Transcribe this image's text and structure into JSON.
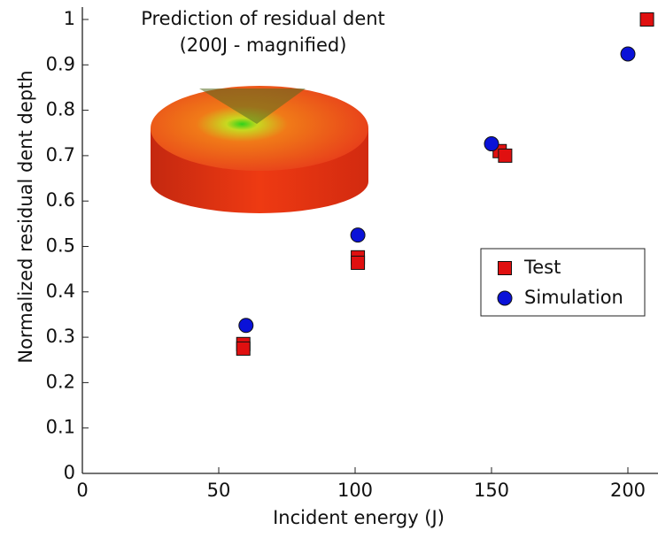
{
  "chart_data": {
    "type": "scatter",
    "annotations": [
      "Prediction of residual dent",
      "(200J - magnified)"
    ],
    "x_label": "Incident energy (J)",
    "y_label": "Normalized residual dent depth",
    "xlim": [
      0,
      210
    ],
    "xticks": [
      0,
      50,
      100,
      150,
      200
    ],
    "ylim": [
      0,
      1
    ],
    "yticks": [
      0,
      0.1,
      0.2,
      0.3,
      0.4,
      0.5,
      0.6,
      0.7,
      0.8,
      0.9,
      1
    ],
    "legend": "right",
    "series": [
      {
        "name": "Test",
        "color": "#e01010",
        "marker": "square",
        "x": [
          59,
          59,
          101,
          101,
          153,
          155,
          207
        ],
        "values": [
          0.285,
          0.275,
          0.476,
          0.464,
          0.71,
          0.7,
          1.0
        ]
      },
      {
        "name": "Simulation",
        "color": "#0a12d8",
        "marker": "circle",
        "x": [
          60,
          101,
          150,
          200
        ],
        "values": [
          0.326,
          0.525,
          0.726,
          0.924
        ]
      }
    ]
  }
}
